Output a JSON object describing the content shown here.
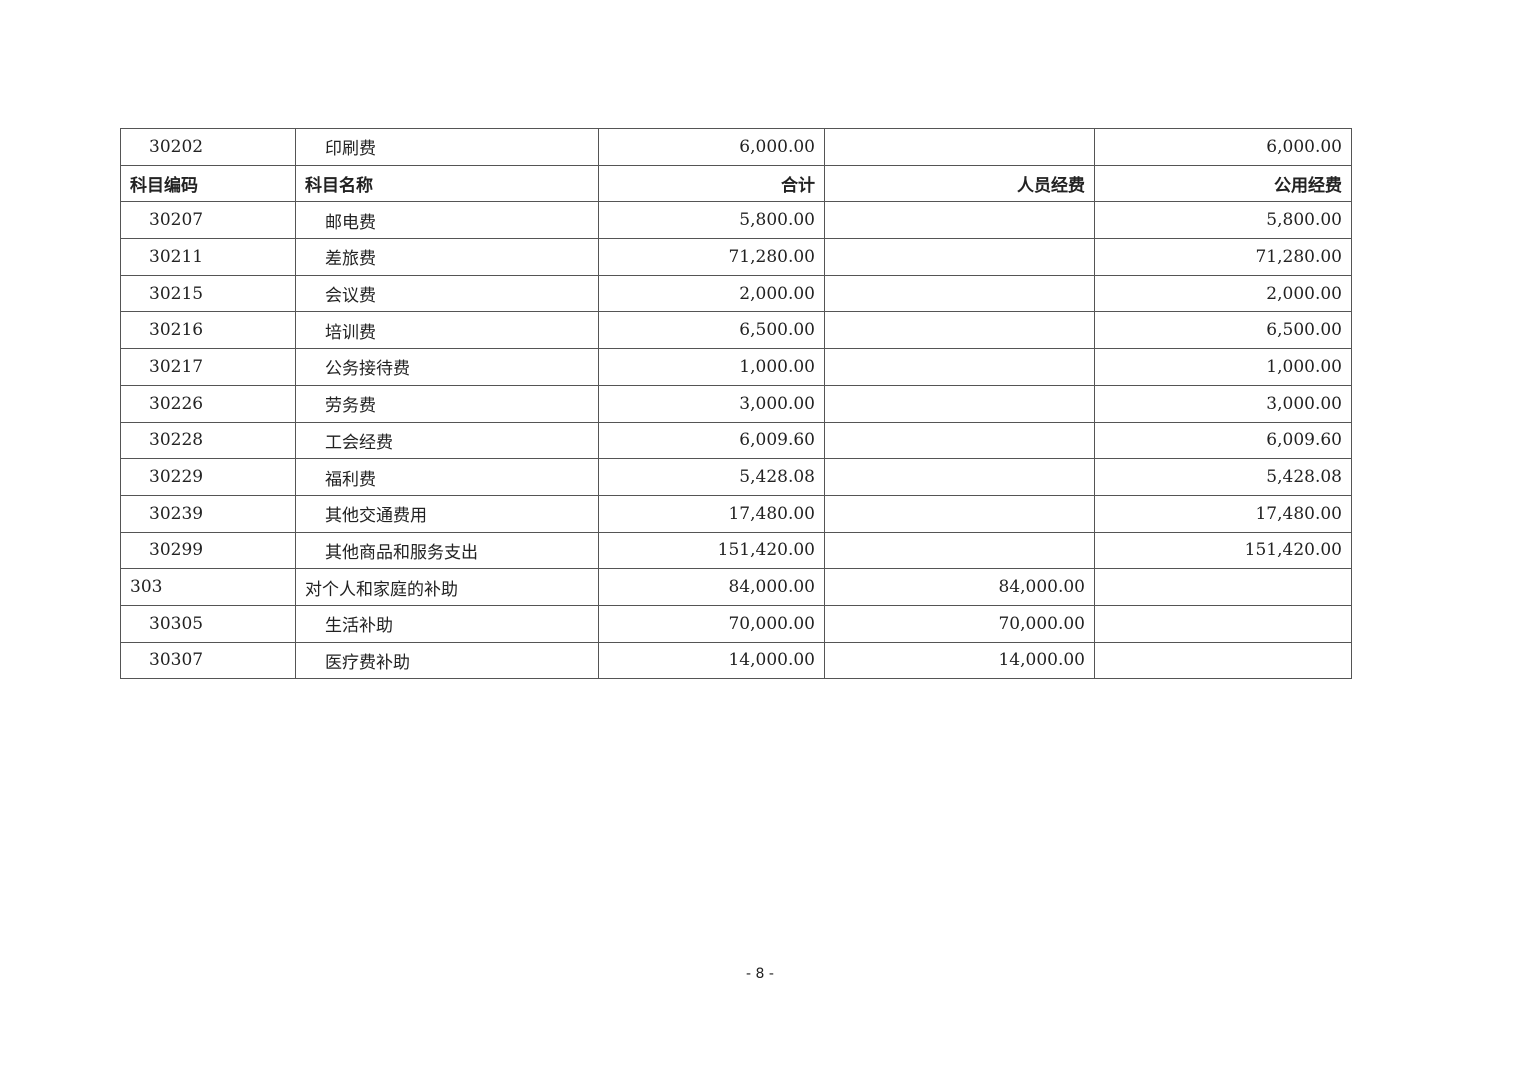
{
  "header": {
    "code": "科目编码",
    "name": "科目名称",
    "total": "合计",
    "personnel": "人员经费",
    "public": "公用经费"
  },
  "rows": [
    {
      "code": "30202",
      "name": "印刷费",
      "total": "6,000.00",
      "personnel": "",
      "public": "6,000.00"
    },
    {
      "header": true
    },
    {
      "code": "30207",
      "name": "邮电费",
      "total": "5,800.00",
      "personnel": "",
      "public": "5,800.00"
    },
    {
      "code": "30211",
      "name": "差旅费",
      "total": "71,280.00",
      "personnel": "",
      "public": "71,280.00"
    },
    {
      "code": "30215",
      "name": "会议费",
      "total": "2,000.00",
      "personnel": "",
      "public": "2,000.00"
    },
    {
      "code": "30216",
      "name": "培训费",
      "total": "6,500.00",
      "personnel": "",
      "public": "6,500.00"
    },
    {
      "code": "30217",
      "name": "公务接待费",
      "total": "1,000.00",
      "personnel": "",
      "public": "1,000.00"
    },
    {
      "code": "30226",
      "name": "劳务费",
      "total": "3,000.00",
      "personnel": "",
      "public": "3,000.00"
    },
    {
      "code": "30228",
      "name": "工会经费",
      "total": "6,009.60",
      "personnel": "",
      "public": "6,009.60"
    },
    {
      "code": "30229",
      "name": "福利费",
      "total": "5,428.08",
      "personnel": "",
      "public": "5,428.08"
    },
    {
      "code": "30239",
      "name": "其他交通费用",
      "total": "17,480.00",
      "personnel": "",
      "public": "17,480.00"
    },
    {
      "code": "30299",
      "name": "其他商品和服务支出",
      "total": "151,420.00",
      "personnel": "",
      "public": "151,420.00"
    },
    {
      "code": "303",
      "name": "对个人和家庭的补助",
      "total": "84,000.00",
      "personnel": "84,000.00",
      "public": "",
      "top": true
    },
    {
      "code": "30305",
      "name": "生活补助",
      "total": "70,000.00",
      "personnel": "70,000.00",
      "public": ""
    },
    {
      "code": "30307",
      "name": "医疗费补助",
      "total": "14,000.00",
      "personnel": "14,000.00",
      "public": ""
    }
  ],
  "page_number": "- 8 -"
}
